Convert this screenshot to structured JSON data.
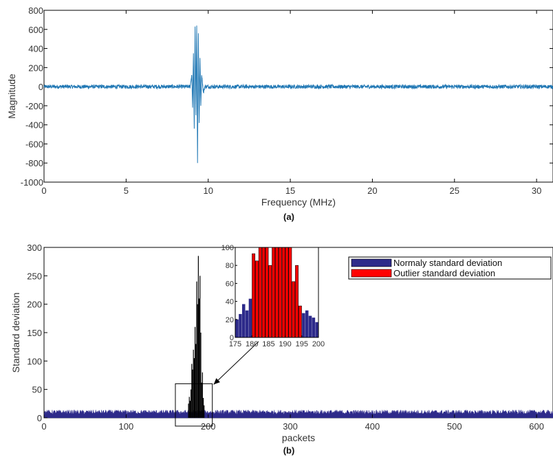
{
  "chart_data": [
    {
      "type": "line",
      "caption": "(a)",
      "xlabel": "Frequency (MHz)",
      "ylabel": "Magnitude",
      "xlim": [
        0,
        31
      ],
      "ylim": [
        -1000,
        800
      ],
      "xticks": [
        0,
        5,
        10,
        15,
        20,
        25,
        30
      ],
      "yticks": [
        -1000,
        -800,
        -600,
        -400,
        -200,
        0,
        200,
        400,
        600,
        800
      ],
      "grid": false,
      "series": [
        {
          "color": "#1f77b4",
          "description_values": {
            "baseline_noise_amplitude": 10,
            "burst_center": 9.3,
            "burst_points": [
              [
                8.9,
                0
              ],
              [
                9.0,
                120
              ],
              [
                9.05,
                -220
              ],
              [
                9.1,
                350
              ],
              [
                9.15,
                -440
              ],
              [
                9.2,
                630
              ],
              [
                9.25,
                -300
              ],
              [
                9.3,
                640
              ],
              [
                9.35,
                -800
              ],
              [
                9.4,
                560
              ],
              [
                9.45,
                -380
              ],
              [
                9.5,
                300
              ],
              [
                9.55,
                -200
              ],
              [
                9.6,
                120
              ],
              [
                9.7,
                -60
              ],
              [
                9.8,
                0
              ]
            ]
          }
        }
      ]
    },
    {
      "type": "bar",
      "caption": "(b)",
      "xlabel": "packets",
      "ylabel": "Standard deviation",
      "xlim": [
        0,
        620
      ],
      "ylim": [
        0,
        300
      ],
      "xticks": [
        0,
        100,
        200,
        300,
        400,
        500,
        600
      ],
      "yticks": [
        0,
        50,
        100,
        150,
        200,
        250,
        300
      ],
      "legend": {
        "position": "top-right",
        "entries": [
          {
            "label": "Normaly standard deviation",
            "color": "#2d2a8a"
          },
          {
            "label": "Outlier standard deviation",
            "color": "#ff0000"
          }
        ]
      },
      "baseline_level": 10,
      "spike": {
        "x": [
          176,
          177,
          178,
          179,
          180,
          181,
          182,
          183,
          184,
          185,
          186,
          187,
          188,
          189,
          190,
          191,
          192,
          193,
          194,
          195
        ],
        "values": [
          25,
          37,
          30,
          50,
          95,
          85,
          120,
          105,
          160,
          130,
          240,
          200,
          285,
          210,
          250,
          150,
          62,
          80,
          35,
          22
        ]
      },
      "inset": {
        "xlim": [
          175,
          200
        ],
        "ylim": [
          0,
          100
        ],
        "xticks": [
          175,
          180,
          185,
          190,
          195,
          200
        ],
        "yticks": [
          0,
          20,
          40,
          60,
          80,
          100
        ],
        "normal_bars": {
          "x": [
            175,
            176,
            177,
            178,
            179,
            195,
            196,
            197,
            198,
            199
          ],
          "values": [
            20,
            26,
            37,
            30,
            43,
            27,
            30,
            24,
            22,
            17
          ]
        },
        "outlier_bars": {
          "x": [
            180,
            181,
            182,
            183,
            184,
            185,
            186,
            187,
            188,
            189,
            190,
            191,
            192,
            193,
            194
          ],
          "values": [
            93,
            85,
            100,
            100,
            100,
            80,
            100,
            100,
            100,
            100,
            100,
            100,
            62,
            80,
            35
          ]
        }
      },
      "callout": {
        "zoom_box": {
          "xrange": [
            160,
            205
          ],
          "yrange": [
            0,
            60
          ]
        }
      }
    }
  ]
}
